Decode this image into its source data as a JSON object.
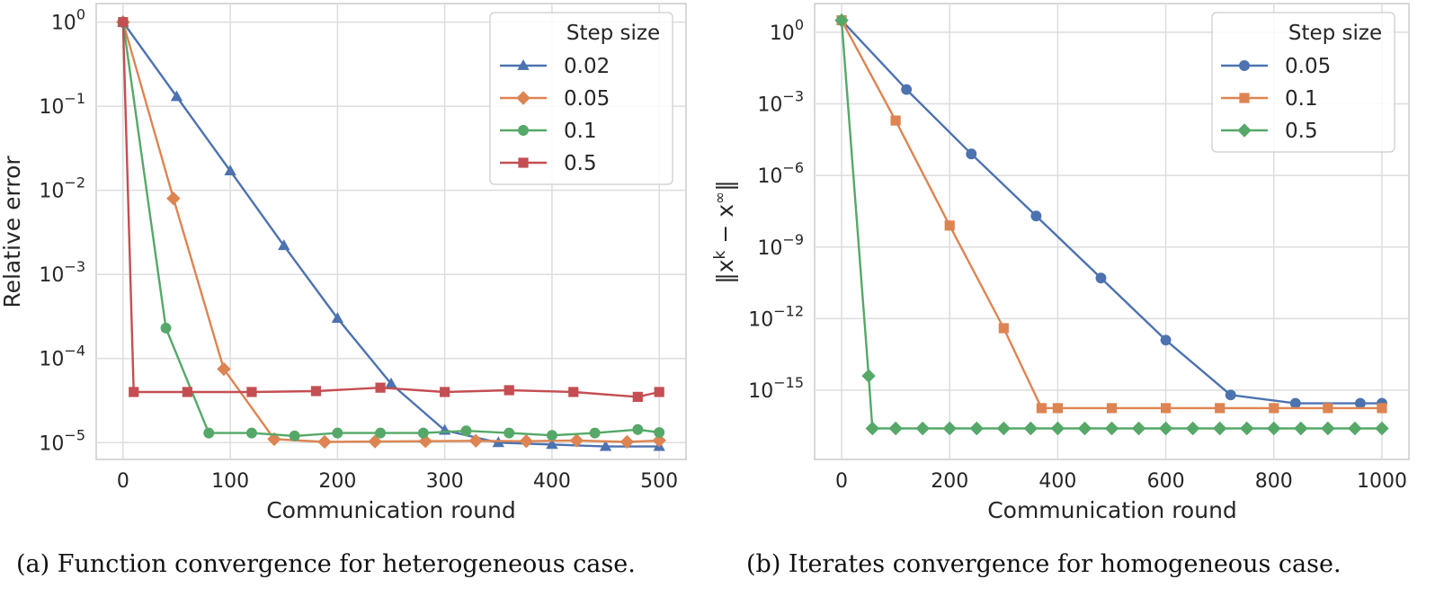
{
  "chart_data": [
    {
      "id": "a",
      "type": "line",
      "yscale": "log",
      "xlabel": "Communication round",
      "ylabel": "Relative error",
      "xlim": [
        -25,
        525
      ],
      "ylim_log10": [
        -5.2,
        0.22
      ],
      "xticks": [
        0,
        100,
        200,
        300,
        400,
        500
      ],
      "xtick_labels": [
        "0",
        "100",
        "200",
        "300",
        "400",
        "500"
      ],
      "yticks_log10": [
        0,
        -1,
        -2,
        -3,
        -4,
        -5
      ],
      "ytick_bases": [
        "10",
        "10",
        "10",
        "10",
        "10",
        "10"
      ],
      "ytick_exps": [
        "0",
        "−1",
        "−2",
        "−3",
        "−4",
        "−5"
      ],
      "legend_title": "Step size",
      "legend_loc": "upper right",
      "series": [
        {
          "name": "0.02",
          "color": "#4c72b0",
          "marker": "triangle",
          "x": [
            0,
            50,
            100,
            150,
            200,
            250,
            300,
            350,
            400,
            450,
            500
          ],
          "y": [
            1,
            0.13,
            0.017,
            0.0022,
            0.0003,
            5e-05,
            1.4e-05,
            1e-05,
            9.5e-06,
            9e-06,
            9e-06
          ]
        },
        {
          "name": "0.05",
          "color": "#dd8452",
          "marker": "diamond",
          "x": [
            0,
            47,
            94,
            141,
            188,
            235,
            282,
            329,
            376,
            423,
            470,
            500
          ],
          "y": [
            1,
            0.008,
            7.5e-05,
            1.1e-05,
            1.02e-05,
            1.03e-05,
            1.04e-05,
            1.05e-05,
            1.04e-05,
            1.06e-05,
            1.02e-05,
            1.06e-05
          ]
        },
        {
          "name": "0.1",
          "color": "#55a868",
          "marker": "circle",
          "x": [
            0,
            40,
            80,
            120,
            160,
            200,
            240,
            280,
            320,
            360,
            400,
            440,
            480,
            500
          ],
          "y": [
            1,
            0.00023,
            1.3e-05,
            1.3e-05,
            1.2e-05,
            1.3e-05,
            1.3e-05,
            1.3e-05,
            1.38e-05,
            1.3e-05,
            1.22e-05,
            1.3e-05,
            1.43e-05,
            1.32e-05
          ]
        },
        {
          "name": "0.5",
          "color": "#c44e52",
          "marker": "square",
          "x": [
            0,
            10,
            60,
            120,
            180,
            240,
            300,
            360,
            420,
            480,
            500
          ],
          "y": [
            1,
            4e-05,
            4e-05,
            4e-05,
            4.1e-05,
            4.5e-05,
            4e-05,
            4.2e-05,
            4e-05,
            3.5e-05,
            4e-05
          ]
        }
      ]
    },
    {
      "id": "b",
      "type": "line",
      "yscale": "log",
      "xlabel": "Communication round",
      "ylabel": "‖xᵏ − x^∞‖",
      "ylabel_main": "‖x",
      "ylabel_sup1": "k",
      "ylabel_mid": " − x",
      "ylabel_sup2": "∞",
      "ylabel_end": "‖",
      "xlim": [
        -50,
        1050
      ],
      "ylim_log10": [
        -17.9,
        1.2
      ],
      "xticks": [
        0,
        200,
        400,
        600,
        800,
        1000
      ],
      "xtick_labels": [
        "0",
        "200",
        "400",
        "600",
        "800",
        "1000"
      ],
      "yticks_log10": [
        0,
        -3,
        -6,
        -9,
        -12,
        -15
      ],
      "ytick_bases": [
        "10",
        "10",
        "10",
        "10",
        "10",
        "10"
      ],
      "ytick_exps": [
        "0",
        "−3",
        "−6",
        "−9",
        "−12",
        "−15"
      ],
      "legend_title": "Step size",
      "legend_loc": "upper right",
      "series": [
        {
          "name": "0.05",
          "color": "#4c72b0",
          "marker": "circle",
          "x": [
            0,
            120,
            240,
            360,
            480,
            600,
            720,
            840,
            960,
            1000
          ],
          "y_log10": [
            0.5,
            -2.4,
            -5.1,
            -7.7,
            -10.3,
            -12.9,
            -15.2,
            -15.55,
            -15.55,
            -15.55
          ]
        },
        {
          "name": "0.1",
          "color": "#dd8452",
          "marker": "square",
          "x": [
            0,
            100,
            200,
            300,
            370,
            400,
            500,
            600,
            700,
            800,
            900,
            1000
          ],
          "y_log10": [
            0.5,
            -3.7,
            -8.1,
            -12.4,
            -15.75,
            -15.75,
            -15.75,
            -15.75,
            -15.75,
            -15.75,
            -15.75,
            -15.75
          ]
        },
        {
          "name": "0.5",
          "color": "#55a868",
          "marker": "diamond",
          "x": [
            0,
            50,
            57,
            100,
            150,
            200,
            250,
            300,
            350,
            400,
            450,
            500,
            550,
            600,
            650,
            700,
            750,
            800,
            850,
            900,
            950,
            1000
          ],
          "y_log10": [
            0.5,
            -14.4,
            -16.6,
            -16.6,
            -16.6,
            -16.6,
            -16.6,
            -16.6,
            -16.6,
            -16.6,
            -16.6,
            -16.6,
            -16.6,
            -16.6,
            -16.6,
            -16.6,
            -16.6,
            -16.6,
            -16.6,
            -16.6,
            -16.6,
            -16.6
          ]
        }
      ]
    }
  ],
  "captions": {
    "a": "(a) Function convergence for heterogeneous case.",
    "b": "(b) Iterates convergence for homogeneous case."
  }
}
